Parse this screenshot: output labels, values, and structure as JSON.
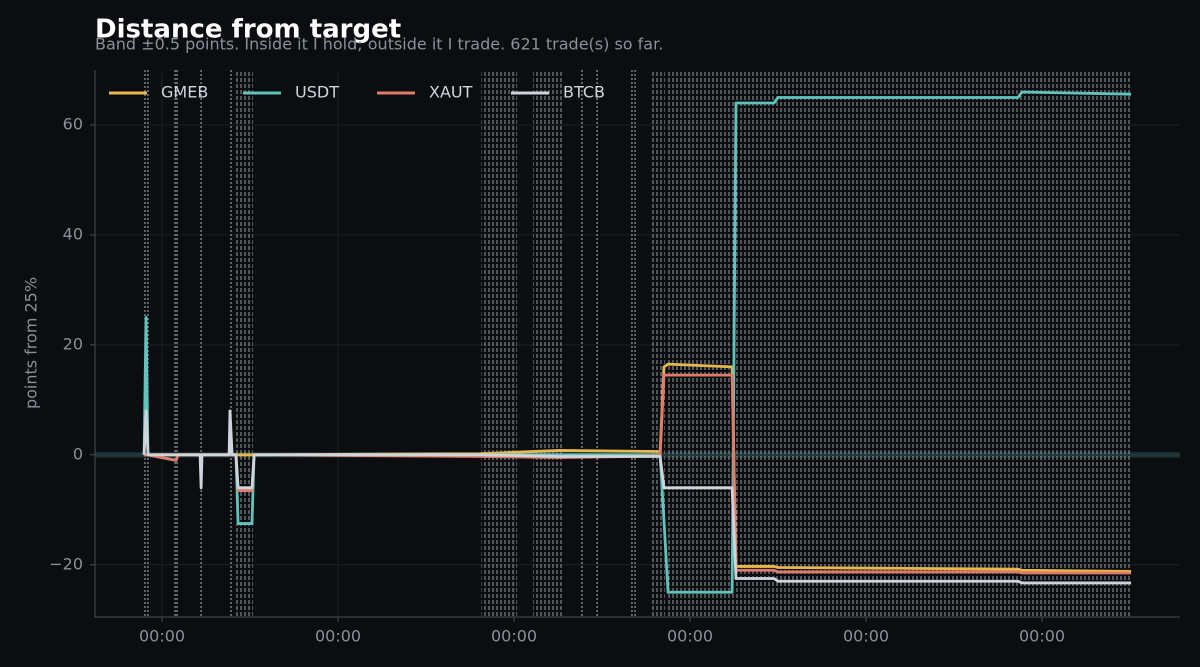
{
  "chart_data": {
    "type": "line",
    "title": "Distance from target",
    "subtitle": "Band ±0.5 points. Inside it I hold; outside it I trade. 621 trade(s) so far.",
    "y_label": "points from 25%",
    "band": 0.5,
    "x": [
      -0.102,
      -0.091,
      -0.08,
      0.08,
      0.091,
      0.216,
      0.222,
      0.227,
      0.381,
      0.386,
      0.398,
      0.42,
      0.432,
      0.511,
      0.523,
      1.807,
      2.261,
      2.83,
      2.852,
      2.875,
      3.239,
      3.261,
      3.477,
      3.5,
      4.864,
      4.886,
      5.506
    ],
    "series": [
      {
        "name": "GMEB",
        "color": "#e8b84a",
        "values": [
          0,
          0,
          0,
          0,
          0,
          0,
          0,
          0,
          0,
          0,
          0,
          0,
          0,
          0,
          0,
          0.2,
          0.8,
          0.6,
          16,
          16.5,
          16,
          -20.3,
          -20.3,
          -20.5,
          -20.8,
          -21,
          -21.2
        ]
      },
      {
        "name": "USDT",
        "color": "#5ec4bc",
        "values": [
          0,
          25,
          0,
          -1,
          0,
          0,
          0,
          0,
          0,
          0,
          0,
          0,
          -12.5,
          -12.5,
          0,
          0,
          0,
          0,
          -12,
          -25,
          -25,
          64,
          64,
          65,
          65,
          66,
          65.6
        ]
      },
      {
        "name": "XAUT",
        "color": "#e07b6a",
        "values": [
          0,
          0,
          0,
          -1,
          0,
          0,
          0,
          0,
          0,
          0,
          0,
          0,
          -6.5,
          -6.5,
          0,
          -0.3,
          -0.5,
          -0.2,
          14.5,
          14.5,
          14.5,
          -21,
          -21,
          -21.3,
          -21.3,
          -21.5,
          -21.5
        ]
      },
      {
        "name": "BTCB",
        "color": "#d0d4dc",
        "values": [
          0,
          8,
          0,
          0,
          0,
          0,
          -6,
          0,
          0,
          8,
          0,
          0,
          -6,
          -6,
          0,
          0,
          -0.3,
          -0.3,
          -6,
          -6,
          -6,
          -22.5,
          -22.5,
          -23,
          -23,
          -23.3,
          -23.3
        ]
      }
    ],
    "trade_x": [
      -0.097,
      -0.08,
      0.074,
      0.085,
      0.222,
      0.392,
      2.386,
      2.472,
      2.67,
      2.688
    ],
    "trade_spans": [
      [
        0.42,
        0.517
      ],
      [
        1.813,
        2.017
      ],
      [
        2.108,
        2.278
      ],
      [
        2.784,
        2.858
      ],
      [
        2.875,
        5.506
      ]
    ],
    "xlim": [
      -0.381,
      5.784
    ],
    "xticks": [
      {
        "value": 0,
        "label": "00:00"
      },
      {
        "value": 1,
        "label": "00:00"
      },
      {
        "value": 2,
        "label": "00:00"
      },
      {
        "value": 3,
        "label": "00:00"
      },
      {
        "value": 4,
        "label": "00:00"
      },
      {
        "value": 5,
        "label": "00:00"
      }
    ],
    "ylim": [
      -29.5,
      70
    ],
    "yticks": [
      {
        "value": -20,
        "label": "−20"
      },
      0,
      20,
      40,
      60
    ],
    "grid": true,
    "legend": "upper-left"
  }
}
